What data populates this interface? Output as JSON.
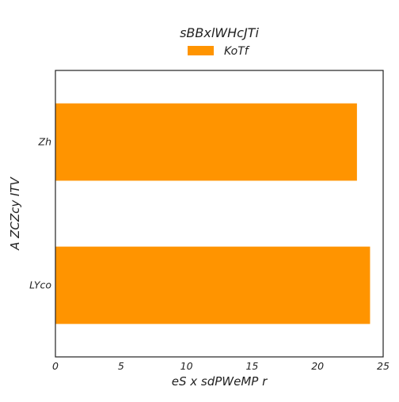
{
  "chart_data": {
    "type": "bar",
    "orientation": "horizontal",
    "title": "sBBxlWHcJTi",
    "xlabel": "eS x sdPWeMP r",
    "ylabel": "A ZCZcy ITV",
    "categories": [
      "Zh",
      "LYco"
    ],
    "series": [
      {
        "name": "KoTf",
        "values": [
          23,
          24
        ]
      }
    ],
    "xlim": [
      0,
      25
    ],
    "xticks": [
      0,
      5,
      10,
      15,
      20,
      25
    ],
    "grid": false,
    "legend_position": "top-center",
    "colors": {
      "bar": "#ff9400",
      "axis": "#222222",
      "background": "#ffffff"
    }
  }
}
